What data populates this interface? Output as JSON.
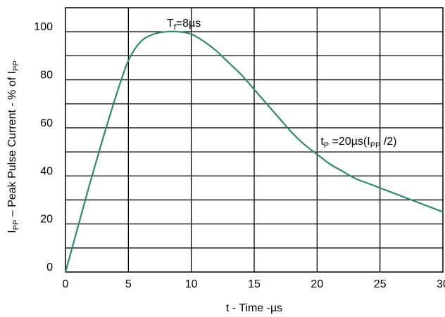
{
  "chart_data": {
    "type": "line",
    "title": "",
    "xlabel": "t - Time -µs",
    "ylabel": {
      "main": "I",
      "sub": "PP",
      "rest": " – Peak Pulse Current - % of  I",
      "sub2": "PP"
    },
    "xlim": [
      0,
      30
    ],
    "ylim": [
      0,
      110
    ],
    "x_ticks": [
      0,
      5,
      10,
      15,
      20,
      25,
      30
    ],
    "y_ticks": [
      0,
      20,
      40,
      60,
      80,
      100
    ],
    "grid": true,
    "series": [
      {
        "color": "#2e8b6e",
        "x": [
          0,
          1,
          2,
          3,
          4,
          5,
          6,
          7,
          8,
          9,
          10,
          11,
          12,
          13,
          14,
          15,
          16,
          17,
          18,
          19,
          20,
          21,
          22,
          23,
          24,
          25,
          26,
          27,
          28,
          29,
          30
        ],
        "y": [
          0,
          19,
          38,
          56,
          73,
          88,
          96,
          99,
          100,
          100,
          99,
          96,
          92,
          87,
          82,
          76,
          70,
          64,
          58,
          53,
          49,
          45,
          42,
          39,
          37,
          35,
          33,
          31,
          29,
          27,
          25
        ]
      }
    ],
    "annotations": [
      {
        "main": "T",
        "sub": "f",
        "rest": "=8µs",
        "x": 8,
        "y": 100
      },
      {
        "main": "t",
        "sub": "P",
        "rest": " =20µs(I",
        "sub2": "PP",
        "rest2": " /2)",
        "x": 20,
        "y": 50
      }
    ]
  }
}
